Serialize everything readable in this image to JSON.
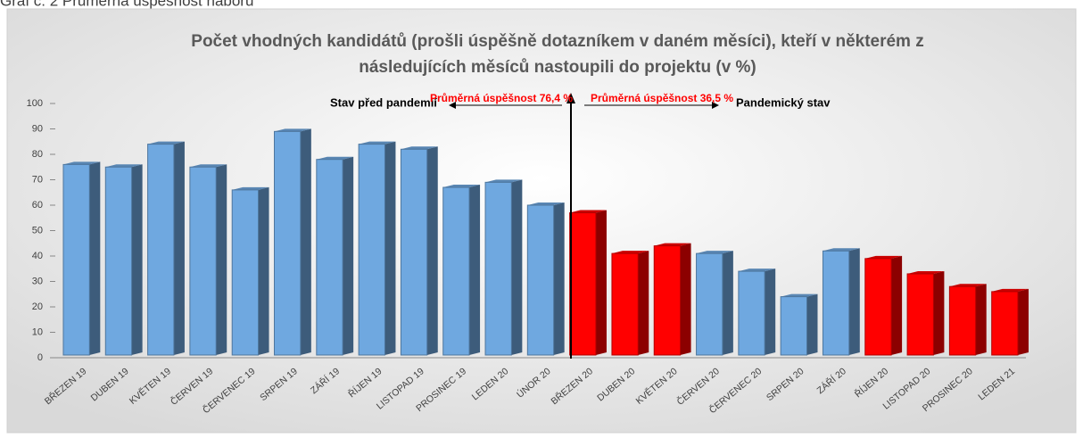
{
  "caption": "Graf č. 2 Průměrná úspěšnost náboru",
  "chart_data": {
    "type": "bar",
    "title": [
      "Počet vhodných kandidátů (prošli úspěšně dotazníkem v daném měsíci), kteří v některém z",
      "následujících měsíců nastoupili do projektu  (v %)"
    ],
    "categories": [
      "BŘEZEN 19",
      "DUBEN 19",
      "KVĚTEN 19",
      "ČERVEN 19",
      "ČERVENEC 19",
      "SRPEN 19",
      "ZÁŘÍ 19",
      "ŘÍJEN 19",
      "LISTOPAD 19",
      "PROSINEC 19",
      "LEDEN 20",
      "ÚNOR 20",
      "BŘEZEN 20",
      "DUBEN 20",
      "KVĚTEN 20",
      "ČERVEN 20",
      "ČERVENEC 20",
      "SRPEN 20",
      "ZÁŘÍ 20",
      "ŘÍJEN 20",
      "LISTOPAD 20",
      "PROSINEC 20",
      "LEDEN 21"
    ],
    "values": [
      76,
      75,
      84,
      75,
      66,
      89,
      78,
      84,
      82,
      67,
      69,
      60,
      57,
      41,
      44,
      41,
      34,
      24,
      42,
      39,
      33,
      28,
      26
    ],
    "colors": [
      "#6fa8e0",
      "#6fa8e0",
      "#6fa8e0",
      "#6fa8e0",
      "#6fa8e0",
      "#6fa8e0",
      "#6fa8e0",
      "#6fa8e0",
      "#6fa8e0",
      "#6fa8e0",
      "#6fa8e0",
      "#6fa8e0",
      "#ff0000",
      "#ff0000",
      "#ff0000",
      "#6fa8e0",
      "#6fa8e0",
      "#6fa8e0",
      "#6fa8e0",
      "#ff0000",
      "#ff0000",
      "#ff0000",
      "#ff0000"
    ],
    "ylim": [
      0,
      100
    ],
    "yticks": [
      0,
      10,
      20,
      30,
      40,
      50,
      60,
      70,
      80,
      90,
      100
    ],
    "annotations": [
      "Stav před pandemií",
      "Průměrná úspěšnost 76,4 %",
      "Průměrná úspěšnost 36,5 %",
      "Pandemický stav"
    ]
  }
}
